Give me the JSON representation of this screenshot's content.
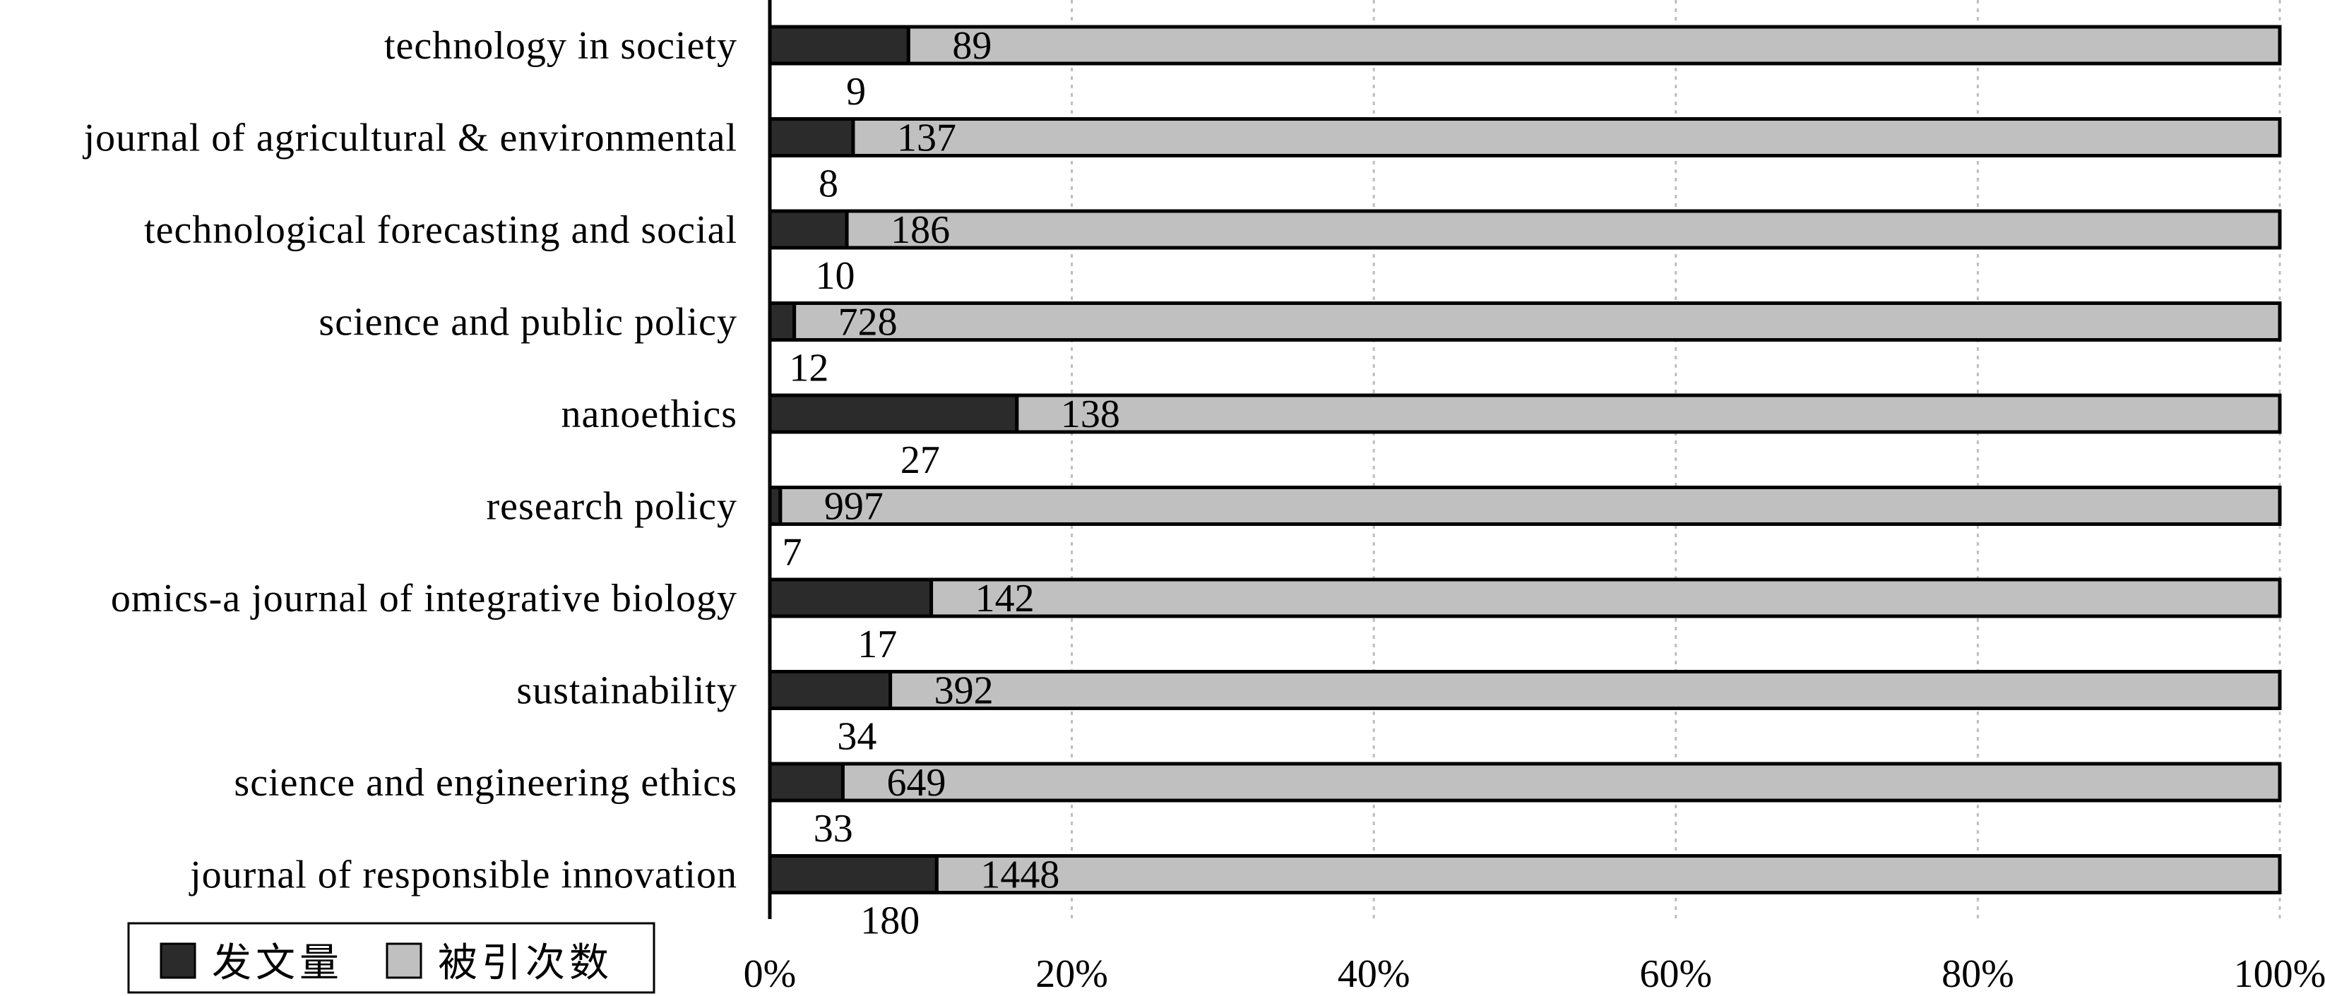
{
  "chart_data": {
    "type": "bar",
    "orientation": "horizontal",
    "stacked": "percent",
    "categories": [
      "technology in society",
      "journal of agricultural & environmental",
      "technological forecasting and social",
      "science and public policy",
      "nanoethics",
      "research policy",
      "omics-a journal of integrative biology",
      "sustainability",
      "science and engineering ethics",
      "journal of responsible innovation"
    ],
    "series": [
      {
        "name": "发文量",
        "values": [
          9,
          8,
          10,
          12,
          27,
          7,
          17,
          34,
          33,
          180
        ],
        "color": "#2b2b2b"
      },
      {
        "name": "被引次数",
        "values": [
          89,
          137,
          186,
          728,
          138,
          997,
          142,
          392,
          649,
          1448
        ],
        "color": "#c0c0c0"
      }
    ],
    "x_ticks": [
      "0%",
      "20%",
      "40%",
      "60%",
      "80%",
      "100%"
    ],
    "xlim": [
      0,
      100
    ],
    "grid": "vertical dotted",
    "legend_position": "bottom-left"
  }
}
